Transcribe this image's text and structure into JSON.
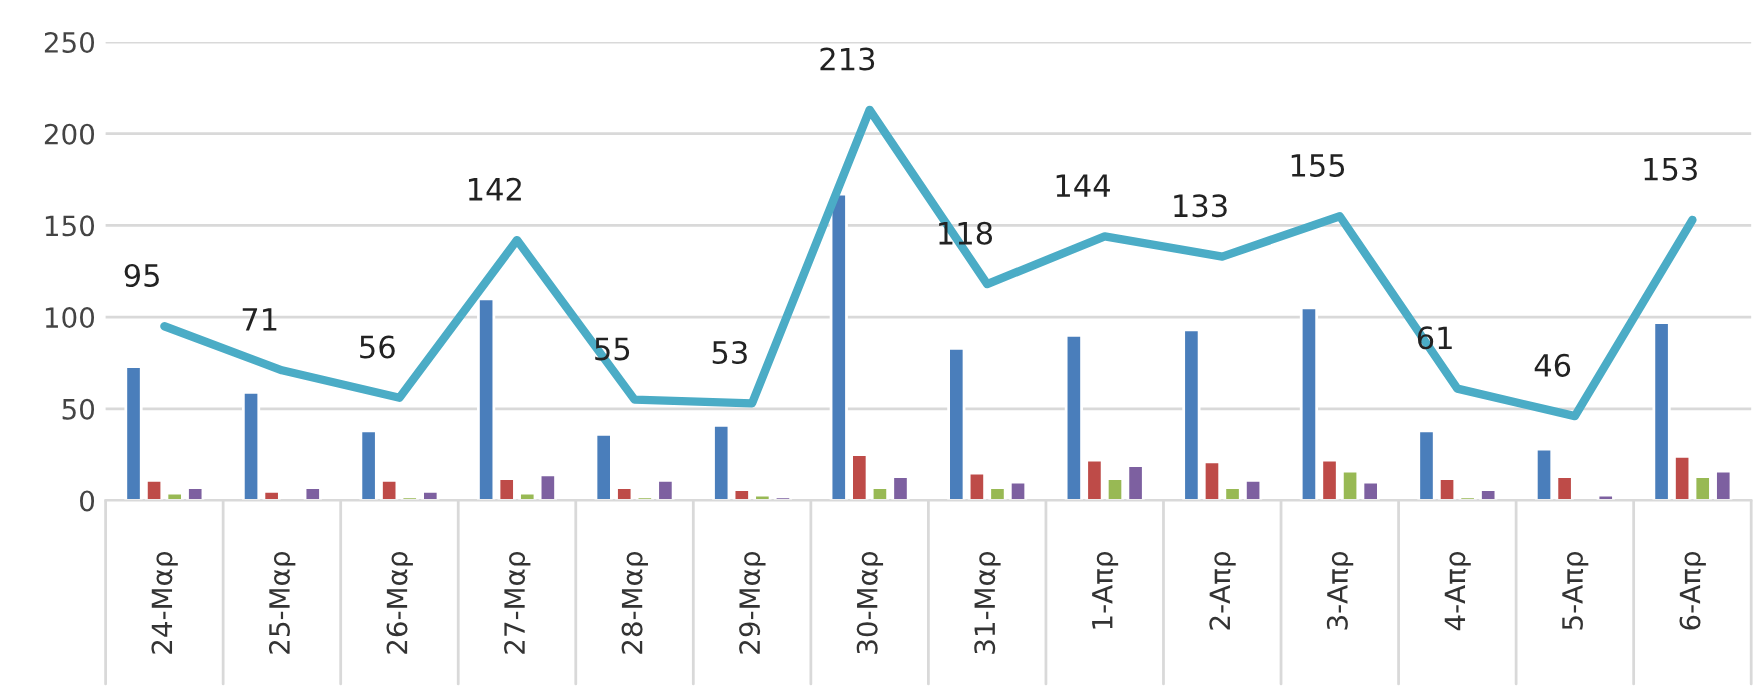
{
  "chart_data": {
    "type": "bar",
    "categories": [
      "24-Μαρ",
      "25-Μαρ",
      "26-Μαρ",
      "27-Μαρ",
      "28-Μαρ",
      "29-Μαρ",
      "30-Μαρ",
      "31-Μαρ",
      "1-Απρ",
      "2-Απρ",
      "3-Απρ",
      "4-Απρ",
      "5-Απρ",
      "6-Απρ"
    ],
    "series": [
      {
        "color": "#4a7ebb",
        "values": [
          73,
          59,
          38,
          110,
          36,
          41,
          167,
          83,
          90,
          93,
          105,
          38,
          28,
          97
        ]
      },
      {
        "color": "#be4b48",
        "values": [
          11,
          5,
          11,
          12,
          7,
          6,
          25,
          15,
          22,
          21,
          22,
          12,
          13,
          24
        ]
      },
      {
        "color": "#98b954",
        "values": [
          4,
          null,
          2,
          4,
          2,
          3,
          7,
          7,
          12,
          7,
          16,
          2,
          null,
          13
        ]
      },
      {
        "color": "#7d60a0",
        "values": [
          7,
          7,
          5,
          14,
          11,
          2,
          13,
          10,
          19,
          11,
          10,
          6,
          3,
          16
        ]
      },
      {
        "type": "line",
        "color": "#4bacc6",
        "values": [
          95,
          71,
          56,
          142,
          55,
          53,
          213,
          118,
          144,
          133,
          155,
          61,
          46,
          153
        ],
        "data_labels": true
      }
    ],
    "ylim": [
      0,
      250
    ],
    "yticks": [
      0,
      50,
      100,
      150,
      200,
      250
    ],
    "grid": "y",
    "legend": false
  }
}
